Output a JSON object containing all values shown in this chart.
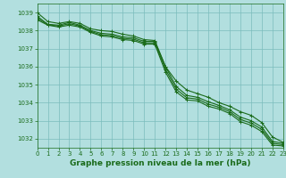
{
  "xlabel": "Graphe pression niveau de la mer (hPa)",
  "background_color": "#b2dfdf",
  "grid_color": "#7bbcbc",
  "line_color": "#1a6b1a",
  "ylim": [
    1031.5,
    1039.5
  ],
  "xlim": [
    0,
    23
  ],
  "yticks": [
    1032,
    1033,
    1034,
    1035,
    1036,
    1037,
    1038,
    1039
  ],
  "xticks": [
    0,
    1,
    2,
    3,
    4,
    5,
    6,
    7,
    8,
    9,
    10,
    11,
    12,
    13,
    14,
    15,
    16,
    17,
    18,
    19,
    20,
    21,
    22,
    23
  ],
  "series": [
    [
      1039.0,
      1038.5,
      1038.4,
      1038.5,
      1038.4,
      1038.1,
      1038.0,
      1037.95,
      1037.8,
      1037.7,
      1037.5,
      1037.45,
      1036.0,
      1035.2,
      1034.7,
      1034.5,
      1034.3,
      1034.0,
      1033.8,
      1033.5,
      1033.3,
      1032.9,
      1032.1,
      1031.8
    ],
    [
      1038.8,
      1038.35,
      1038.3,
      1038.45,
      1038.3,
      1038.0,
      1037.85,
      1037.8,
      1037.65,
      1037.6,
      1037.4,
      1037.4,
      1036.0,
      1034.9,
      1034.4,
      1034.3,
      1034.05,
      1033.85,
      1033.6,
      1033.2,
      1033.0,
      1032.65,
      1031.85,
      1031.75
    ],
    [
      1038.6,
      1038.3,
      1038.2,
      1038.3,
      1038.2,
      1037.9,
      1037.7,
      1037.65,
      1037.5,
      1037.45,
      1037.25,
      1037.25,
      1035.7,
      1034.6,
      1034.15,
      1034.1,
      1033.8,
      1033.65,
      1033.4,
      1032.95,
      1032.75,
      1032.4,
      1031.65,
      1031.6
    ],
    [
      1038.7,
      1038.32,
      1038.25,
      1038.38,
      1038.25,
      1037.95,
      1037.77,
      1037.72,
      1037.57,
      1037.52,
      1037.32,
      1037.32,
      1035.85,
      1034.75,
      1034.27,
      1034.2,
      1033.92,
      1033.75,
      1033.5,
      1033.07,
      1032.87,
      1032.52,
      1031.75,
      1031.67
    ]
  ],
  "marker": "+",
  "markersize": 3,
  "linewidth": 0.8,
  "tick_fontsize": 5.0,
  "xlabel_fontsize": 6.5,
  "xlabel_bold": true
}
